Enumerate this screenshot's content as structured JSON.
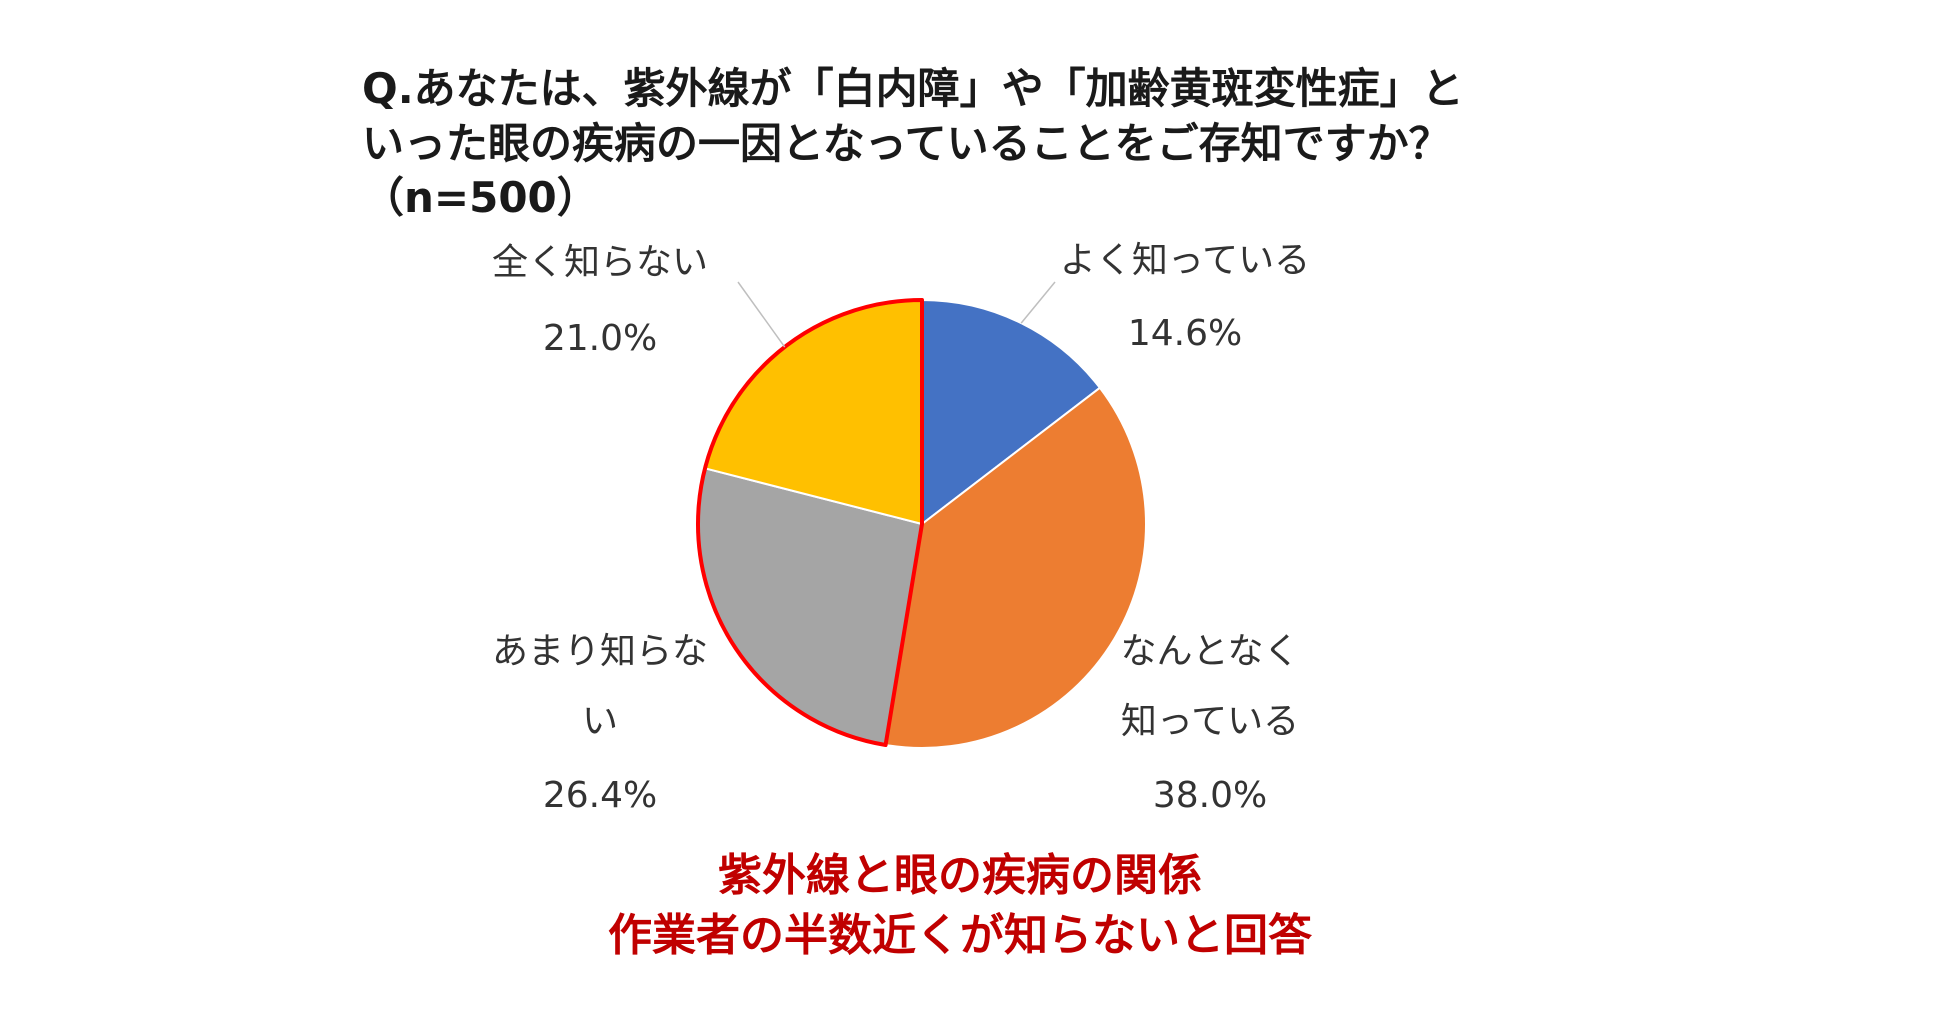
{
  "chart_data": {
    "type": "pie",
    "title": "Q.あなたは、紫外線が「白内障」や「加齢黄斑変性症」といった眼の疾病の一因となっていることをご存知ですか？（n=500）",
    "title_lines": [
      "Q.あなたは、紫外線が「白内障」や「加齢黄斑変性症」と",
      "いった眼の疾病の一因となっていることをご存知ですか？",
      "（n=500）"
    ],
    "slices": [
      {
        "name": "よく知っている",
        "label_lines": [
          "よく知っている"
        ],
        "value": 14.6,
        "value_label": "14.6%",
        "color": "#4472C4",
        "highlighted": false
      },
      {
        "name": "なんとなく知っている",
        "label_lines": [
          "なんとなく",
          "知っている"
        ],
        "value": 38.0,
        "value_label": "38.0%",
        "color": "#ED7D31",
        "highlighted": false
      },
      {
        "name": "あまり知らない",
        "label_lines": [
          "あまり知らな",
          "い"
        ],
        "value": 26.4,
        "value_label": "26.4%",
        "color": "#A5A5A5",
        "highlighted": true
      },
      {
        "name": "全く知らない",
        "label_lines": [
          "全く知らない"
        ],
        "value": 21.0,
        "value_label": "21.0%",
        "color": "#FFC000",
        "highlighted": true
      }
    ],
    "highlight_color": "#FF0000",
    "legend": "none",
    "caption_lines": [
      "紫外線と眼の疾病の関係",
      "作業者の半数近くが知らないと回答"
    ],
    "caption_color": "#C00000"
  }
}
